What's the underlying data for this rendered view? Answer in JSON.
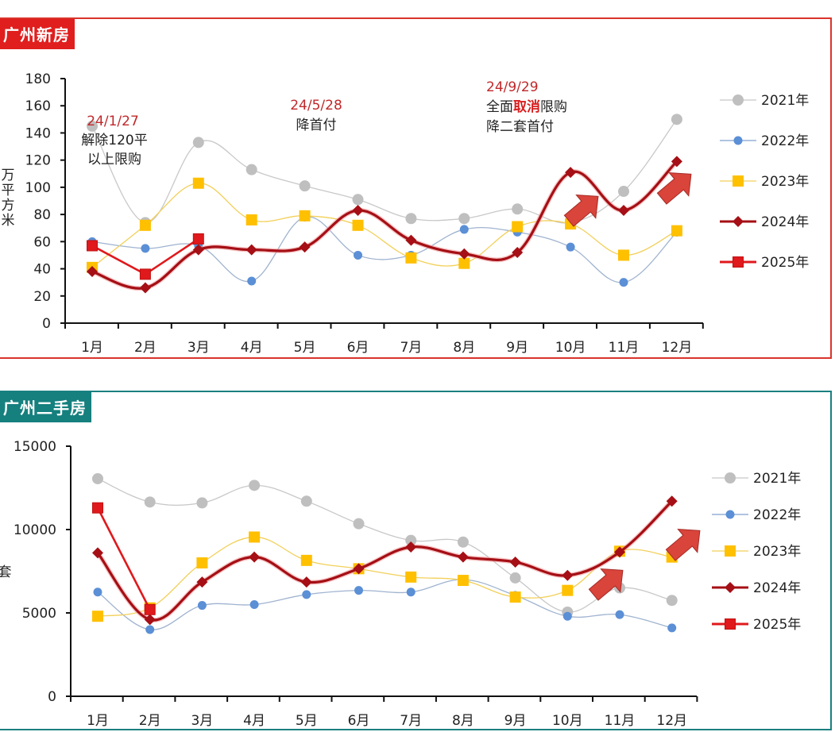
{
  "colors": {
    "2021": "#bfbfbf",
    "2022": "#5b8fd6",
    "2023": "#ffc000",
    "2024": "#a50f15",
    "2025": "#e0191c",
    "arrow": "#d9443b",
    "panel1_border": "#d9342b",
    "panel2_border": "#1a7f80"
  },
  "panels": [
    {
      "title": "广州新房"
    },
    {
      "title": "广州二手房"
    }
  ],
  "chart_data": [
    {
      "type": "line",
      "title": "广州新房",
      "xlabel": "",
      "ylabel": "万平方米",
      "ylim": [
        0,
        180
      ],
      "yticks": [
        0,
        20,
        40,
        60,
        80,
        100,
        120,
        140,
        160,
        180
      ],
      "categories": [
        "1月",
        "2月",
        "3月",
        "4月",
        "5月",
        "6月",
        "7月",
        "8月",
        "9月",
        "10月",
        "11月",
        "12月"
      ],
      "legend_position": "right",
      "grid": false,
      "series": [
        {
          "name": "2021年",
          "marker": "circle",
          "values": [
            145,
            74,
            133,
            113,
            101,
            91,
            77,
            77,
            84,
            74,
            97,
            150
          ]
        },
        {
          "name": "2022年",
          "marker": "circle-small",
          "values": [
            60,
            55,
            57,
            31,
            78,
            50,
            50,
            69,
            67,
            56,
            30,
            67
          ]
        },
        {
          "name": "2023年",
          "marker": "square",
          "values": [
            41,
            72,
            103,
            76,
            79,
            72,
            48,
            44,
            71,
            73,
            50,
            68
          ]
        },
        {
          "name": "2024年",
          "marker": "diamond",
          "values": [
            38,
            26,
            54,
            54,
            56,
            83,
            61,
            51,
            52,
            111,
            83,
            119
          ]
        },
        {
          "name": "2025年",
          "marker": "square-red",
          "values": [
            57,
            36,
            62
          ]
        }
      ],
      "annotations": [
        {
          "date": "24/1/27",
          "lines": [
            "解除120平",
            "以上限购"
          ]
        },
        {
          "date": "24/5/28",
          "lines": [
            "降首付"
          ]
        },
        {
          "date": "24/9/29",
          "lines_rich": [
            [
              "全面",
              "取消",
              "限购"
            ],
            [
              "降二套首付"
            ]
          ]
        }
      ],
      "arrows": [
        "up-right near 10月",
        "up-right near 12月"
      ]
    },
    {
      "type": "line",
      "title": "广州二手房",
      "xlabel": "",
      "ylabel": "套",
      "ylim": [
        0,
        15000
      ],
      "yticks": [
        0,
        5000,
        10000,
        15000
      ],
      "categories": [
        "1月",
        "2月",
        "3月",
        "4月",
        "5月",
        "6月",
        "7月",
        "8月",
        "9月",
        "10月",
        "11月",
        "12月"
      ],
      "legend_position": "right",
      "grid": false,
      "series": [
        {
          "name": "2021年",
          "marker": "circle",
          "values": [
            13050,
            11650,
            11600,
            12650,
            11700,
            10350,
            9350,
            9250,
            7100,
            5050,
            6500,
            5750
          ]
        },
        {
          "name": "2022年",
          "marker": "circle-small",
          "values": [
            6250,
            4000,
            5450,
            5500,
            6100,
            6350,
            6250,
            7000,
            6050,
            4800,
            4900,
            4100
          ]
        },
        {
          "name": "2023年",
          "marker": "square",
          "values": [
            4800,
            5300,
            8000,
            9550,
            8150,
            7650,
            7150,
            6950,
            5950,
            6350,
            8700,
            8350
          ]
        },
        {
          "name": "2024年",
          "marker": "diamond",
          "values": [
            8600,
            4600,
            6850,
            8350,
            6850,
            7650,
            8950,
            8350,
            8050,
            7250,
            8650,
            11700
          ]
        },
        {
          "name": "2025年",
          "marker": "square-red",
          "values": [
            11300,
            5200
          ]
        }
      ],
      "arrows": [
        "up-right near 11月",
        "up-right near 12月"
      ]
    }
  ]
}
